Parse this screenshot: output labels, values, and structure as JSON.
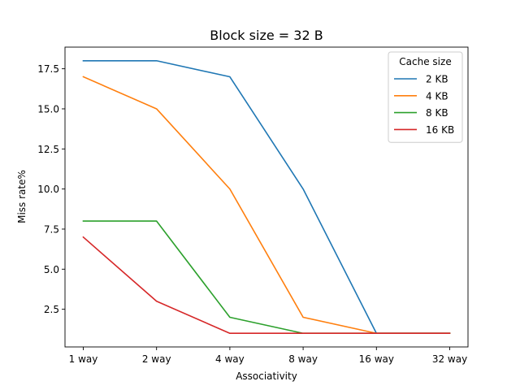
{
  "chart_data": {
    "type": "line",
    "title": "Block size = 32 B",
    "xlabel": "Associativity",
    "ylabel": "Miss rate%",
    "categories": [
      "1 way",
      "2 way",
      "4 way",
      "8 way",
      "16 way",
      "32 way"
    ],
    "yticks": [
      "2.5",
      "5.0",
      "7.5",
      "10.0",
      "12.5",
      "15.0",
      "17.5"
    ],
    "ylim": [
      0.15,
      18.85
    ],
    "grid": false,
    "legend": {
      "title": "Cache size",
      "placement": "top-right"
    },
    "series": [
      {
        "name": "2 KB",
        "color": "#1f77b4",
        "values": [
          18,
          18,
          17,
          10,
          1,
          1
        ]
      },
      {
        "name": "4 KB",
        "color": "#ff7f0e",
        "values": [
          17,
          15,
          10,
          2,
          1,
          1
        ]
      },
      {
        "name": "8 KB",
        "color": "#2ca02c",
        "values": [
          8,
          8,
          2,
          1,
          1,
          1
        ]
      },
      {
        "name": "16 KB",
        "color": "#d62728",
        "values": [
          7,
          3,
          1,
          1,
          1,
          1
        ]
      }
    ]
  }
}
